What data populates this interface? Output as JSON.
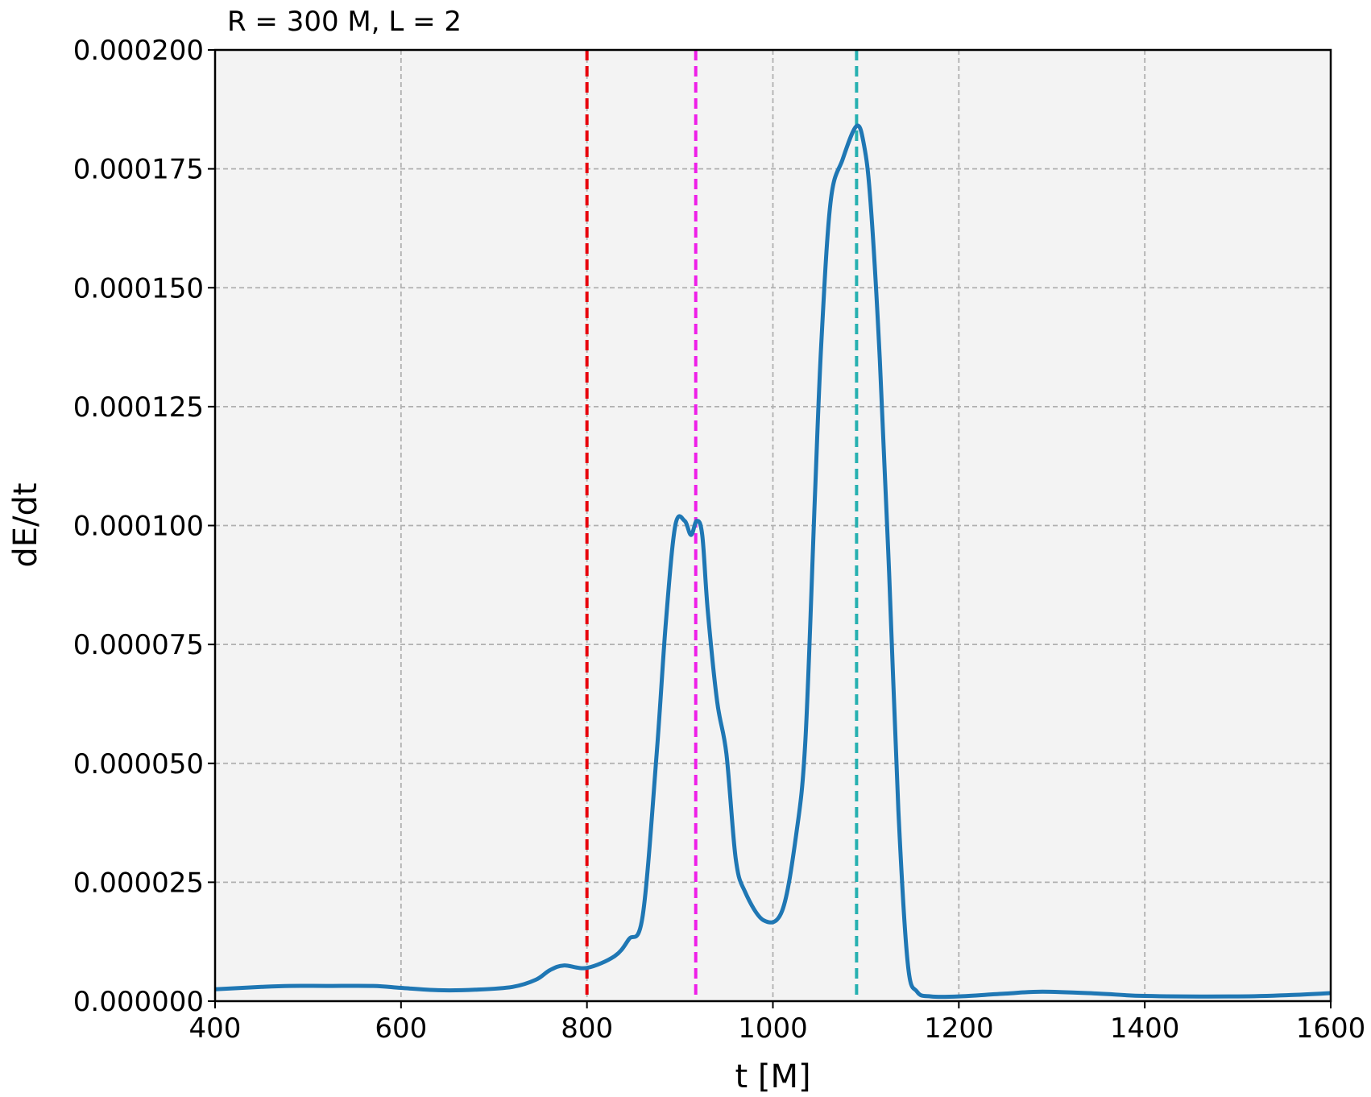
{
  "chart_data": {
    "type": "line",
    "title": "R = 300 M, L = 2",
    "xlabel": "t [M]",
    "ylabel": "dE/dt",
    "xlim": [
      400,
      1600
    ],
    "ylim": [
      0,
      0.0002
    ],
    "grid": true,
    "x_ticks": [
      400,
      600,
      800,
      1000,
      1200,
      1400,
      1600
    ],
    "x_tick_labels": [
      "400",
      "600",
      "800",
      "1000",
      "1200",
      "1400",
      "1600"
    ],
    "y_ticks": [
      0,
      2.5e-05,
      5e-05,
      7.5e-05,
      0.0001,
      0.000125,
      0.00015,
      0.000175,
      0.0002
    ],
    "y_tick_labels": [
      "0.000000",
      "0.000025",
      "0.000050",
      "0.000075",
      "0.000100",
      "0.000125",
      "0.000150",
      "0.000175",
      "0.000200"
    ],
    "series": [
      {
        "color": "#1f77b4",
        "x": [
          400,
          450,
          480,
          520,
          570,
          600,
          640,
          680,
          720,
          745,
          760,
          775,
          800,
          830,
          845,
          860,
          875,
          885,
          895,
          905,
          912,
          918,
          924,
          930,
          940,
          950,
          960,
          970,
          990,
          1010,
          1025,
          1035,
          1045,
          1052,
          1062,
          1075,
          1090,
          1098,
          1105,
          1115,
          1125,
          1135,
          1145,
          1155,
          1170,
          1200,
          1250,
          1290,
          1350,
          1400,
          1500,
          1560,
          1600
        ],
        "y": [
          2.5e-06,
          3e-06,
          3.2e-06,
          3.2e-06,
          3.2e-06,
          2.8e-06,
          2.3e-06,
          2.4e-06,
          3e-06,
          4.5e-06,
          6.5e-06,
          7.5e-06,
          7e-06,
          9.5e-06,
          1.3e-05,
          1.8e-05,
          5.2e-05,
          8e-05,
          0.0001,
          0.000101,
          9.8e-05,
          0.000101,
          9.8e-05,
          8.2e-05,
          6.3e-05,
          5.2e-05,
          3e-05,
          2.3e-05,
          1.7e-05,
          1.9e-05,
          3.5e-05,
          5.5e-05,
          0.000105,
          0.000138,
          0.000168,
          0.000177,
          0.000184,
          0.00018,
          0.000168,
          0.000135,
          9e-05,
          4e-05,
          8e-06,
          2e-06,
          1e-06,
          1e-06,
          1.6e-06,
          2e-06,
          1.6e-06,
          1.1e-06,
          1e-06,
          1.3e-06,
          1.7e-06
        ]
      }
    ],
    "vlines": [
      {
        "x": 800,
        "color": "#e8000b",
        "style": "dashed"
      },
      {
        "x": 917,
        "color": "#ee1ee8",
        "style": "dashed"
      },
      {
        "x": 1090,
        "color": "#26b0b0",
        "style": "dashed"
      }
    ],
    "colors": {
      "plot_background": "#f3f3f3",
      "grid": "#b0b0b0"
    }
  }
}
